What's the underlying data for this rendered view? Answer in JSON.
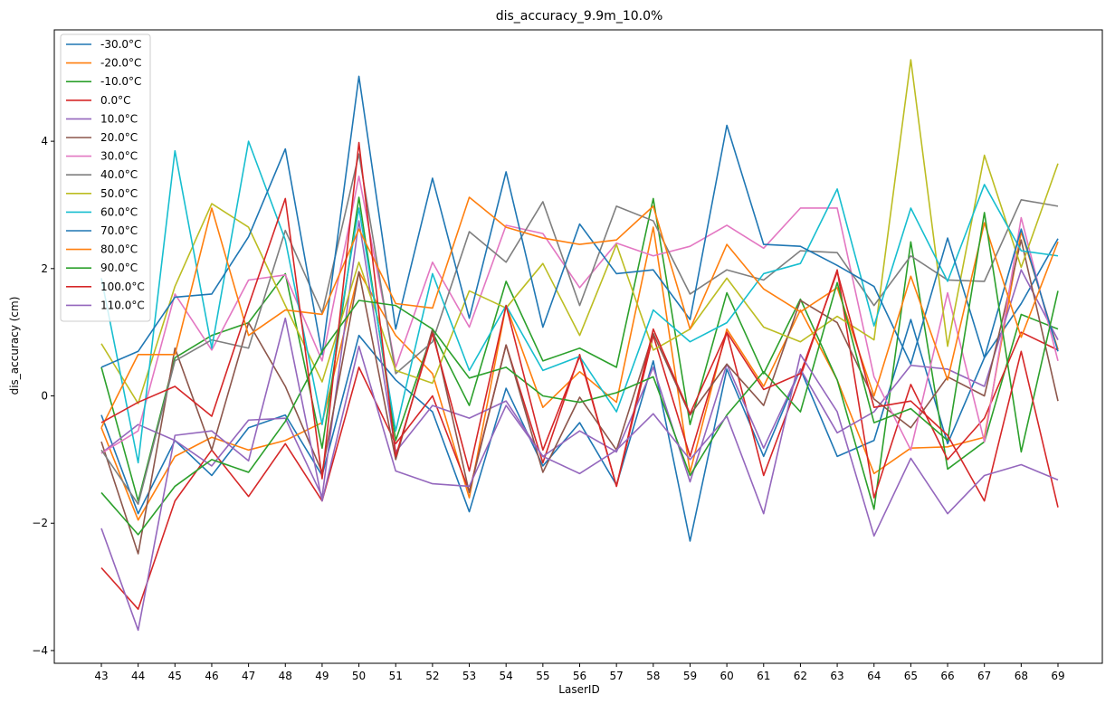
{
  "chart_data": {
    "type": "line",
    "title": "dis_accuracy_9.9m_10.0%",
    "xlabel": "LaserID",
    "ylabel": "dis_accuracy (cm)",
    "x": [
      "43",
      "44",
      "45",
      "46",
      "47",
      "48",
      "49",
      "50",
      "51",
      "52",
      "53",
      "54",
      "55",
      "56",
      "57",
      "58",
      "59",
      "60",
      "61",
      "62",
      "63",
      "64",
      "65",
      "66",
      "67",
      "68",
      "69"
    ],
    "yticks": [
      "−4",
      "−2",
      "0",
      "2",
      "4"
    ],
    "ylim": [
      -4.2,
      5.75
    ],
    "legend_position": "upper-left",
    "series": [
      {
        "name": "-30.0°C",
        "color": "#1f77b4",
        "values": [
          -0.3,
          -1.85,
          -0.7,
          -1.25,
          -0.5,
          -0.3,
          -1.25,
          0.95,
          0.25,
          -0.25,
          -1.82,
          0.12,
          -1.1,
          -0.42,
          -1.4,
          0.55,
          -2.28,
          0.42,
          -0.95,
          0.42,
          -0.95,
          -0.7,
          1.2,
          -0.75,
          0.6,
          1.45,
          2.47
        ]
      },
      {
        "name": "-20.0°C",
        "color": "#ff7f0e",
        "values": [
          -0.5,
          -1.95,
          -0.95,
          -0.65,
          -0.85,
          -0.7,
          -0.42,
          1.95,
          0.95,
          0.35,
          -1.6,
          1.42,
          -0.18,
          0.38,
          -0.1,
          2.65,
          -1.2,
          1.05,
          0.15,
          1.35,
          0.25,
          -1.22,
          -0.82,
          -0.8,
          -0.65,
          2.58,
          0.73
        ]
      },
      {
        "name": "-10.0°C",
        "color": "#2ca02c",
        "values": [
          0.45,
          -1.65,
          0.6,
          0.95,
          1.15,
          1.92,
          -0.82,
          3.12,
          -0.7,
          1.0,
          -0.15,
          1.8,
          0.55,
          0.75,
          0.45,
          3.1,
          -0.45,
          1.62,
          0.35,
          1.52,
          0.25,
          -1.78,
          2.42,
          -1.15,
          -0.72,
          1.28,
          1.05
        ]
      },
      {
        "name": "0.0°C",
        "color": "#d62728",
        "values": [
          -2.7,
          -3.35,
          -1.65,
          -0.85,
          -1.58,
          -0.75,
          -1.65,
          0.45,
          -0.75,
          0.0,
          -1.5,
          0.8,
          -1.05,
          0.65,
          -1.42,
          0.95,
          -0.95,
          1.0,
          -1.25,
          0.3,
          1.98,
          -1.6,
          0.18,
          -1.0,
          -0.35,
          1.0,
          0.72
        ]
      },
      {
        "name": "10.0°C",
        "color": "#9467bd",
        "values": [
          -0.9,
          -0.45,
          -0.7,
          -1.1,
          -0.38,
          -0.35,
          -1.58,
          2.75,
          -0.88,
          -0.15,
          -0.35,
          -0.08,
          -0.95,
          -0.55,
          -0.88,
          0.45,
          -1.35,
          0.5,
          -0.82,
          0.42,
          -0.58,
          -0.25,
          0.48,
          0.42,
          0.15,
          1.98,
          0.88
        ]
      },
      {
        "name": "20.0°C",
        "color": "#8c564b",
        "values": [
          -0.72,
          -2.48,
          0.75,
          -0.85,
          1.15,
          0.15,
          -1.2,
          1.95,
          -1.0,
          1.05,
          -1.52,
          0.8,
          -1.2,
          -0.02,
          -0.85,
          0.98,
          -0.3,
          0.5,
          -0.15,
          1.5,
          1.15,
          -0.05,
          -0.5,
          0.3,
          0.0,
          2.45,
          -0.08
        ]
      },
      {
        "name": "30.0°C",
        "color": "#e377c2",
        "values": [
          -0.9,
          -0.55,
          1.6,
          0.72,
          1.82,
          1.9,
          0.55,
          3.45,
          0.45,
          2.1,
          1.08,
          2.68,
          2.55,
          1.7,
          2.4,
          2.2,
          2.35,
          2.68,
          2.32,
          2.95,
          2.95,
          0.3,
          -0.85,
          1.62,
          -0.72,
          2.8,
          0.55
        ]
      },
      {
        "name": "40.0°C",
        "color": "#7f7f7f",
        "values": [
          -0.85,
          -1.7,
          0.55,
          0.88,
          0.75,
          2.6,
          1.3,
          3.8,
          0.35,
          0.85,
          2.58,
          2.1,
          3.05,
          1.42,
          2.98,
          2.75,
          1.6,
          1.98,
          1.82,
          2.28,
          2.25,
          1.42,
          2.2,
          1.82,
          1.8,
          3.08,
          2.98
        ]
      },
      {
        "name": "50.0°C",
        "color": "#bcbd22",
        "values": [
          0.82,
          -0.12,
          1.72,
          3.02,
          2.65,
          1.42,
          0.22,
          2.1,
          0.4,
          0.2,
          1.65,
          1.38,
          2.08,
          0.95,
          2.38,
          0.72,
          1.05,
          1.85,
          1.08,
          0.85,
          1.25,
          0.88,
          5.28,
          0.78,
          3.78,
          2.02,
          3.65
        ]
      },
      {
        "name": "60.0°C",
        "color": "#17becf",
        "values": [
          1.85,
          -1.05,
          3.85,
          0.75,
          4.0,
          2.45,
          -0.45,
          2.95,
          -0.55,
          1.92,
          0.4,
          1.42,
          0.4,
          0.62,
          -0.25,
          1.35,
          0.85,
          1.15,
          1.92,
          2.08,
          3.25,
          1.1,
          2.95,
          1.8,
          3.32,
          2.28,
          2.2
        ]
      },
      {
        "name": "70.0°C",
        "color": "#1f77b4",
        "values": [
          0.45,
          0.7,
          1.55,
          1.6,
          2.5,
          3.88,
          0.65,
          5.02,
          1.05,
          3.42,
          1.22,
          3.52,
          1.08,
          2.7,
          1.92,
          1.98,
          1.2,
          4.25,
          2.38,
          2.35,
          2.05,
          1.72,
          0.5,
          2.48,
          0.6,
          2.62,
          0.7
        ]
      },
      {
        "name": "80.0°C",
        "color": "#ff7f0e",
        "values": [
          -0.5,
          0.65,
          0.65,
          2.95,
          0.95,
          1.35,
          1.28,
          2.62,
          1.45,
          1.38,
          3.12,
          2.65,
          2.48,
          2.38,
          2.45,
          2.98,
          1.05,
          2.38,
          1.68,
          1.32,
          1.7,
          0.0,
          1.88,
          0.25,
          2.72,
          0.92,
          2.42
        ]
      },
      {
        "name": "90.0°C",
        "color": "#2ca02c",
        "values": [
          -1.52,
          -2.18,
          -1.42,
          -1.0,
          -1.2,
          -0.4,
          0.7,
          1.5,
          1.42,
          1.05,
          0.28,
          0.45,
          0.0,
          -0.1,
          0.05,
          0.3,
          -1.25,
          -0.3,
          0.38,
          -0.25,
          1.78,
          -0.42,
          -0.2,
          -0.7,
          2.88,
          -0.88,
          1.65
        ]
      },
      {
        "name": "100.0°C",
        "color": "#d62728",
        "values": [
          -0.42,
          -0.1,
          0.15,
          -0.32,
          1.42,
          3.1,
          -1.3,
          3.98,
          -0.95,
          0.98,
          -1.18,
          1.42,
          -0.85,
          0.62,
          -1.42,
          1.05,
          -0.28,
          1.0,
          0.1,
          0.35,
          1.95,
          -0.18,
          -0.08,
          -0.62,
          -1.65,
          0.7,
          -1.75
        ]
      },
      {
        "name": "110.0°C",
        "color": "#9467bd",
        "values": [
          -2.08,
          -3.68,
          -0.62,
          -0.55,
          -1.02,
          1.22,
          -1.65,
          0.78,
          -1.18,
          -1.38,
          -1.42,
          -0.15,
          -0.95,
          -1.22,
          -0.85,
          -0.28,
          -1.0,
          -0.32,
          -1.85,
          0.65,
          -0.25,
          -2.2,
          -0.98,
          -1.85,
          -1.25,
          -1.08,
          -1.32
        ]
      }
    ]
  }
}
